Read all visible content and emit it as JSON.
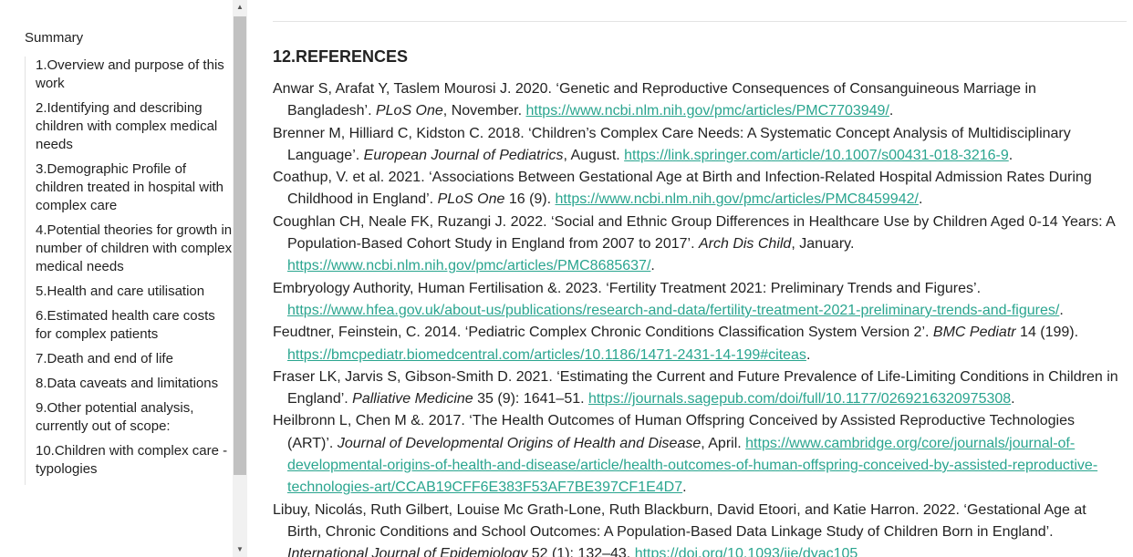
{
  "sidebar": {
    "summary": "Summary",
    "items": [
      {
        "label": "1.Overview and purpose of this work"
      },
      {
        "label": "2.Identifying and describing children with complex medical needs"
      },
      {
        "label": "3.Demographic Profile of children treated in hospital with complex care"
      },
      {
        "label": "4.Potential theories for growth in number of children with complex medical needs"
      },
      {
        "label": "5.Health and care utilisation"
      },
      {
        "label": "6.Estimated health care costs for complex patients"
      },
      {
        "label": "7.Death and end of life"
      },
      {
        "label": "8.Data caveats and limitations"
      },
      {
        "label": "9.Other potential analysis, currently out of scope:"
      },
      {
        "label": "10.Children with complex care - typologies"
      }
    ]
  },
  "content": {
    "heading": "12.REFERENCES",
    "references": [
      {
        "pre": "Anwar S, Arafat Y, Taslem Mourosi J. 2020. ‘Genetic and Reproductive Consequences of Consanguineous Marriage in Bangladesh’. ",
        "journal": "PLoS One",
        "post": ", November. ",
        "url": "https://www.ncbi.nlm.nih.gov/pmc/articles/PMC7703949/",
        "end": "."
      },
      {
        "pre": "Brenner M, Hilliard C, Kidston C. 2018. ‘Children’s Complex Care Needs: A Systematic Concept Analysis of Multidisciplinary Language’. ",
        "journal": "European Journal of Pediatrics",
        "post": ", August. ",
        "url": "https://link.springer.com/article/10.1007/s00431-018-3216-9",
        "end": "."
      },
      {
        "pre": "Coathup, V. et al. 2021. ‘Associations Between Gestational Age at Birth and Infection-Related Hospital Admission Rates During Childhood in England’. ",
        "journal": "PLoS One",
        "post": " 16 (9). ",
        "url": "https://www.ncbi.nlm.nih.gov/pmc/articles/PMC8459942/",
        "end": "."
      },
      {
        "pre": "Coughlan CH, Neale FK, Ruzangi J. 2022. ‘Social and Ethnic Group Differences in Healthcare Use by Children Aged 0-14 Years: A Population-Based Cohort Study in England from 2007 to 2017’. ",
        "journal": "Arch Dis Child",
        "post": ", January. ",
        "url": "https://www.ncbi.nlm.nih.gov/pmc/articles/PMC8685637/",
        "end": "."
      },
      {
        "pre": "Embryology Authority, Human Fertilisation &. 2023. ‘Fertility Treatment 2021: Preliminary Trends and Figures’. ",
        "journal": "",
        "post": "",
        "url": "https://www.hfea.gov.uk/about-us/publications/research-and-data/fertility-treatment-2021-preliminary-trends-and-figures/",
        "end": "."
      },
      {
        "pre": "Feudtner, Feinstein, C. 2014. ‘Pediatric Complex Chronic Conditions Classification System Version 2’. ",
        "journal": "BMC Pediatr",
        "post": " 14 (199). ",
        "url": "https://bmcpediatr.biomedcentral.com/articles/10.1186/1471-2431-14-199#citeas",
        "end": "."
      },
      {
        "pre": "Fraser LK, Jarvis S, Gibson-Smith D. 2021. ‘Estimating the Current and Future Prevalence of Life-Limiting Conditions in Children in England’. ",
        "journal": "Palliative Medicine",
        "post": " 35 (9): 1641–51. ",
        "url": "https://journals.sagepub.com/doi/full/10.1177/0269216320975308",
        "end": "."
      },
      {
        "pre": "Heilbronn L, Chen M &. 2017. ‘The Health Outcomes of Human Offspring Conceived by Assisted Reproductive Technologies (ART)’. ",
        "journal": "Journal of Developmental Origins of Health and Disease",
        "post": ", April. ",
        "url": "https://www.cambridge.org/core/journals/journal-of-developmental-origins-of-health-and-disease/article/health-outcomes-of-human-offspring-conceived-by-assisted-reproductive-technologies-art/CCAB19CFF6E383F53AF7BE397CF1E4D7",
        "end": "."
      },
      {
        "pre": "Libuy, Nicolás, Ruth Gilbert, Louise Mc Grath-Lone, Ruth Blackburn, David Etoori, and Katie Harron. 2022. ‘Gestational Age at Birth, Chronic Conditions and School Outcomes: A Population-Based Data Linkage Study of Children Born in England’. ",
        "journal": "International Journal of Epidemiology",
        "post": " 52 (1): 132–43. ",
        "url": "https://doi.org/10.1093/ije/dyac105",
        "end": ""
      }
    ]
  },
  "colors": {
    "link": "#2aa58f",
    "scroll_thumb": "#c1c1c1"
  }
}
